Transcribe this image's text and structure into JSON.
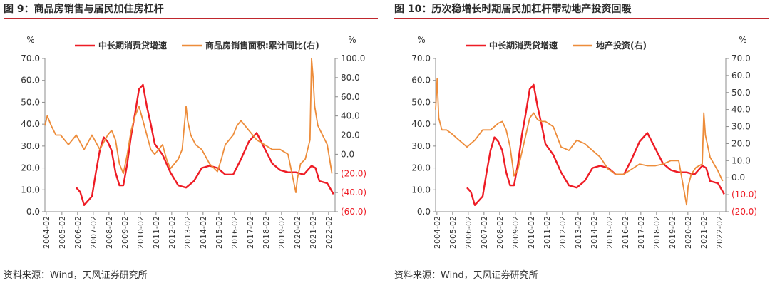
{
  "colors": {
    "red": "#ee1c25",
    "orange": "#ed8c3a",
    "accent": "#c0272d",
    "axis": "#8c8c8c"
  },
  "charts": [
    {
      "title": "图 9：商品房销售与居民加住房杠杆",
      "source": "资料来源：Wind，天风证券研究所",
      "chart_data": {
        "type": "line",
        "x_ticks": [
          "2004-02",
          "2005-02",
          "2006-02",
          "2007-02",
          "2008-02",
          "2009-02",
          "2010-02",
          "2011-02",
          "2012-02",
          "2013-02",
          "2014-02",
          "2015-02",
          "2016-02",
          "2017-02",
          "2018-02",
          "2019-02",
          "2020-02",
          "2021-02",
          "2022-02"
        ],
        "x_range": [
          2004.0,
          2022.5
        ],
        "left_axis": {
          "unit": "%",
          "ylim": [
            0,
            70
          ],
          "ticks": [
            "0.0",
            "10.0",
            "20.0",
            "30.0",
            "40.0",
            "50.0",
            "60.0",
            "70.0"
          ]
        },
        "right_axis": {
          "unit": "%",
          "ylim": [
            -60,
            100
          ],
          "ticks": [
            "(60.0)",
            "(40.0)",
            "(20.0)",
            "0.0",
            "20.0",
            "40.0",
            "60.0",
            "80.0",
            "100.0"
          ]
        },
        "series": [
          {
            "name": "中长期消费贷增速",
            "axis": "left",
            "color": "#ee1c25",
            "x": [
              2006.0,
              2006.25,
              2006.5,
              2006.75,
              2007.0,
              2007.25,
              2007.5,
              2007.75,
              2008.0,
              2008.25,
              2008.5,
              2008.75,
              2009.0,
              2009.25,
              2009.5,
              2009.75,
              2010.0,
              2010.25,
              2010.5,
              2010.75,
              2011.0,
              2011.5,
              2012.0,
              2012.5,
              2013.0,
              2013.5,
              2014.0,
              2014.5,
              2015.0,
              2015.5,
              2016.0,
              2016.5,
              2017.0,
              2017.5,
              2018.0,
              2018.5,
              2019.0,
              2019.5,
              2020.0,
              2020.5,
              2021.0,
              2021.25,
              2021.5,
              2022.0,
              2022.4
            ],
            "y": [
              11,
              9,
              3,
              5,
              7,
              18,
              28,
              34,
              32,
              28,
              18,
              12,
              12,
              22,
              35,
              45,
              56,
              58,
              48,
              40,
              31,
              26,
              18,
              12,
              11,
              14,
              20,
              21,
              20,
              17,
              17,
              24,
              32,
              36,
              29,
              22,
              19,
              18,
              18,
              17,
              21,
              20,
              14,
              13,
              8
            ]
          },
          {
            "name": "商品房销售面积:累计同比(右)",
            "axis": "right",
            "color": "#ed8c3a",
            "x": [
              2004.0,
              2004.15,
              2004.4,
              2004.7,
              2005.0,
              2005.5,
              2006.0,
              2006.5,
              2007.0,
              2007.5,
              2008.0,
              2008.25,
              2008.5,
              2008.75,
              2009.0,
              2009.25,
              2009.5,
              2009.75,
              2010.0,
              2010.25,
              2010.5,
              2010.75,
              2011.0,
              2011.25,
              2011.5,
              2011.75,
              2012.0,
              2012.25,
              2012.5,
              2012.75,
              2013.0,
              2013.1,
              2013.3,
              2013.6,
              2014.0,
              2014.5,
              2015.0,
              2015.25,
              2015.5,
              2015.75,
              2016.0,
              2016.25,
              2016.5,
              2016.75,
              2017.0,
              2017.5,
              2018.0,
              2018.5,
              2019.0,
              2019.5,
              2020.0,
              2020.1,
              2020.3,
              2020.6,
              2020.9,
              2021.0,
              2021.1,
              2021.2,
              2021.4,
              2021.7,
              2022.0,
              2022.3
            ],
            "y": [
              30,
              40,
              30,
              20,
              20,
              10,
              20,
              5,
              20,
              5,
              20,
              25,
              15,
              -10,
              -20,
              0,
              25,
              40,
              50,
              35,
              20,
              5,
              0,
              5,
              10,
              -5,
              -15,
              -10,
              -5,
              5,
              50,
              35,
              20,
              10,
              5,
              -10,
              -18,
              -5,
              10,
              15,
              20,
              30,
              35,
              30,
              25,
              15,
              10,
              5,
              5,
              0,
              -40,
              -25,
              -10,
              -5,
              15,
              100,
              80,
              50,
              30,
              20,
              10,
              -20
            ]
          }
        ]
      }
    },
    {
      "title": "图 10：历次稳增长时期居民加杠杆带动地产投资回暖",
      "source": "资料来源：Wind，天风证券研究所",
      "chart_data": {
        "type": "line",
        "x_ticks": [
          "2004-02",
          "2005-02",
          "2006-02",
          "2007-02",
          "2008-02",
          "2009-02",
          "2010-02",
          "2011-02",
          "2012-02",
          "2013-02",
          "2014-02",
          "2015-02",
          "2016-02",
          "2017-02",
          "2018-02",
          "2019-02",
          "2020-02",
          "2021-02",
          "2022-02"
        ],
        "x_range": [
          2004.0,
          2022.5
        ],
        "left_axis": {
          "unit": "%",
          "ylim": [
            0,
            70
          ],
          "ticks": [
            "0.0",
            "10.0",
            "20.0",
            "30.0",
            "40.0",
            "50.0",
            "60.0",
            "70.0"
          ]
        },
        "right_axis": {
          "unit": "%",
          "ylim": [
            -20,
            70
          ],
          "ticks": [
            "(20.0)",
            "(10.0)",
            "0.0",
            "10.0",
            "20.0",
            "30.0",
            "40.0",
            "50.0",
            "60.0",
            "70.0"
          ]
        },
        "series": [
          {
            "name": "中长期消费贷增速",
            "axis": "left",
            "color": "#ee1c25",
            "x": [
              2006.0,
              2006.25,
              2006.5,
              2006.75,
              2007.0,
              2007.25,
              2007.5,
              2007.75,
              2008.0,
              2008.25,
              2008.5,
              2008.75,
              2009.0,
              2009.25,
              2009.5,
              2009.75,
              2010.0,
              2010.25,
              2010.5,
              2010.75,
              2011.0,
              2011.5,
              2012.0,
              2012.5,
              2013.0,
              2013.5,
              2014.0,
              2014.5,
              2015.0,
              2015.5,
              2016.0,
              2016.5,
              2017.0,
              2017.5,
              2018.0,
              2018.5,
              2019.0,
              2019.5,
              2020.0,
              2020.5,
              2021.0,
              2021.25,
              2021.5,
              2022.0,
              2022.4
            ],
            "y": [
              11,
              9,
              3,
              5,
              7,
              18,
              28,
              34,
              32,
              28,
              18,
              12,
              12,
              22,
              35,
              45,
              56,
              58,
              48,
              40,
              31,
              26,
              18,
              12,
              11,
              14,
              20,
              21,
              20,
              17,
              17,
              24,
              32,
              36,
              29,
              22,
              19,
              18,
              18,
              17,
              21,
              20,
              14,
              13,
              8
            ]
          },
          {
            "name": "地产投资(右)",
            "axis": "right",
            "color": "#ed8c3a",
            "x": [
              2004.0,
              2004.1,
              2004.2,
              2004.4,
              2004.7,
              2005.0,
              2005.5,
              2006.0,
              2006.5,
              2007.0,
              2007.5,
              2008.0,
              2008.25,
              2008.5,
              2008.75,
              2009.0,
              2009.25,
              2009.5,
              2009.75,
              2010.0,
              2010.25,
              2010.5,
              2010.75,
              2011.0,
              2011.5,
              2012.0,
              2012.25,
              2012.5,
              2013.0,
              2013.5,
              2014.0,
              2014.5,
              2015.0,
              2015.5,
              2016.0,
              2016.5,
              2017.0,
              2017.5,
              2018.0,
              2018.5,
              2019.0,
              2019.5,
              2020.0,
              2020.1,
              2020.3,
              2020.6,
              2021.0,
              2021.1,
              2021.2,
              2021.5,
              2022.0,
              2022.3
            ],
            "y": [
              40,
              58,
              35,
              28,
              28,
              26,
              22,
              18,
              22,
              28,
              28,
              32,
              33,
              28,
              18,
              1,
              5,
              15,
              25,
              35,
              38,
              34,
              33,
              33,
              30,
              18,
              17,
              16,
              22,
              20,
              16,
              12,
              5,
              2,
              2,
              5,
              8,
              7,
              7,
              8,
              10,
              10,
              -16,
              -5,
              2,
              6,
              8,
              38,
              25,
              12,
              4,
              -2
            ]
          }
        ]
      }
    }
  ]
}
